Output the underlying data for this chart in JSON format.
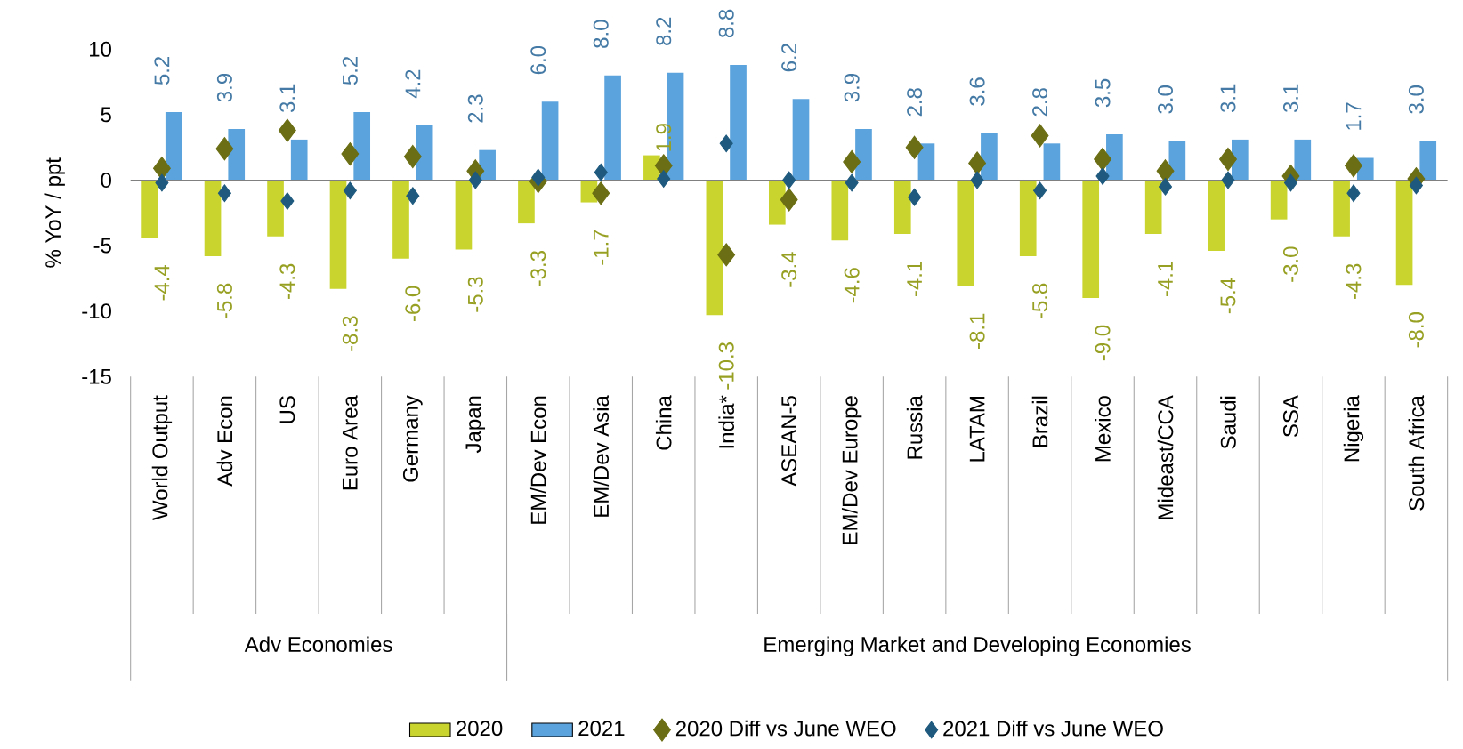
{
  "chart_data": {
    "type": "bar",
    "ylabel": "% YoY / ppt",
    "categories": [
      "World Output",
      "Adv Econ",
      "US",
      "Euro Area",
      "Germany",
      "Japan",
      "EM/Dev Econ",
      "EM/Dev Asia",
      "China",
      "India*",
      "ASEAN-5",
      "EM/Dev Europe",
      "Russia",
      "LATAM",
      "Brazil",
      "Mexico",
      "Mideast/CCA",
      "Saudi",
      "SSA",
      "Nigeria",
      "South Africa"
    ],
    "series": [
      {
        "name": "2020",
        "color": "#c9d52e",
        "values": [
          -4.4,
          -5.8,
          -4.3,
          -8.3,
          -6.0,
          -5.3,
          -3.3,
          -1.7,
          1.9,
          -10.3,
          -3.4,
          -4.6,
          -4.1,
          -8.1,
          -5.8,
          -9.0,
          -4.1,
          -5.4,
          -3.0,
          -4.3,
          -8.0
        ],
        "value_labels": [
          "-4.4",
          "-5.8",
          "-4.3",
          "-8.3",
          "-6.0",
          "-5.3",
          "-3.3",
          "-1.7",
          "1.9",
          "-10.3",
          "-3.4",
          "-4.6",
          "-4.1",
          "-8.1",
          "-5.8",
          "-9.0",
          "-4.1",
          "-5.4",
          "-3.0",
          "-4.3",
          "-8.0"
        ]
      },
      {
        "name": "2021",
        "color": "#5ba3dc",
        "values": [
          5.2,
          3.9,
          3.1,
          5.2,
          4.2,
          2.3,
          6.0,
          8.0,
          8.2,
          8.8,
          6.2,
          3.9,
          2.8,
          3.6,
          2.8,
          3.5,
          3.0,
          3.1,
          3.1,
          1.7,
          3.0
        ],
        "value_labels": [
          "5.2",
          "3.9",
          "3.1",
          "5.2",
          "4.2",
          "2.3",
          "6.0",
          "8.0",
          "8.2",
          "8.8",
          "6.2",
          "3.9",
          "2.8",
          "3.6",
          "2.8",
          "3.5",
          "3.0",
          "3.1",
          "3.1",
          "1.7",
          "3.0"
        ]
      },
      {
        "name": "2020 Diff vs June WEO",
        "type": "scatter",
        "marker": "diamond",
        "color": "#6b6e14",
        "values": [
          0.9,
          2.4,
          3.8,
          2.0,
          1.8,
          0.7,
          -0.1,
          -1.0,
          1.1,
          -5.7,
          -1.5,
          1.4,
          2.5,
          1.3,
          3.4,
          1.6,
          0.7,
          1.6,
          0.3,
          1.1,
          0.1
        ]
      },
      {
        "name": "2021 Diff vs June WEO",
        "type": "scatter",
        "marker": "diamond",
        "color": "#1f5a7e",
        "values": [
          -0.2,
          -1.0,
          -1.6,
          -0.8,
          -1.2,
          0.0,
          0.2,
          0.6,
          0.1,
          2.8,
          0.0,
          -0.2,
          -1.3,
          0.0,
          -0.8,
          0.3,
          -0.5,
          0.0,
          -0.2,
          -1.0,
          -0.4
        ]
      }
    ],
    "annotations": [
      "Adv Economies",
      "Emerging Market and Developing Economies"
    ],
    "ylim": [
      -15,
      10
    ],
    "yticks": [
      -15,
      -10,
      -5,
      0,
      5,
      10
    ],
    "legend": "bottom"
  }
}
